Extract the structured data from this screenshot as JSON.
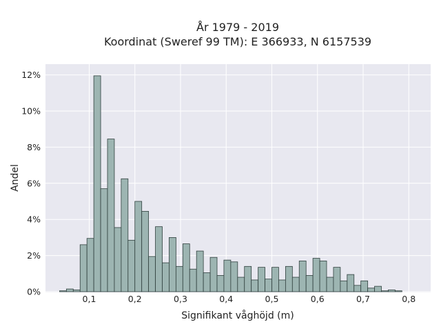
{
  "chart_data": {
    "type": "bar",
    "title_lines": [
      "År 1979 - 2019",
      "Koordinat (Sweref 99 TM): E 366933, N 6157539"
    ],
    "xlabel": "Signifikant våghöjd (m)",
    "ylabel": "Andel",
    "xlim": [
      0.0,
      0.84
    ],
    "ylim": [
      0,
      12.6
    ],
    "x_ticks": [
      {
        "value": 0.1,
        "label": "0,1"
      },
      {
        "value": 0.2,
        "label": "0,2"
      },
      {
        "value": 0.3,
        "label": "0,3"
      },
      {
        "value": 0.4,
        "label": "0,4"
      },
      {
        "value": 0.5,
        "label": "0,5"
      },
      {
        "value": 0.6,
        "label": "0,6"
      },
      {
        "value": 0.7,
        "label": "0,7"
      },
      {
        "value": 0.8,
        "label": "0,8"
      }
    ],
    "y_ticks": [
      {
        "value": 0,
        "label": "0%"
      },
      {
        "value": 2,
        "label": "2%"
      },
      {
        "value": 4,
        "label": "4%"
      },
      {
        "value": 6,
        "label": "6%"
      },
      {
        "value": 8,
        "label": "8%"
      },
      {
        "value": 10,
        "label": "10%"
      },
      {
        "value": 12,
        "label": "12%"
      }
    ],
    "grid": true,
    "bar_color": "#9db5b2",
    "bar_edge_color": "#2f3f3d",
    "background_color": "#e8e8f0",
    "grid_color": "#ffffff",
    "bin_width": 0.015,
    "bin_centers": [
      0.0425,
      0.0575,
      0.0725,
      0.0875,
      0.1025,
      0.1175,
      0.1325,
      0.1475,
      0.1625,
      0.1775,
      0.1925,
      0.2075,
      0.2225,
      0.2375,
      0.2525,
      0.2675,
      0.2825,
      0.2975,
      0.3125,
      0.3275,
      0.3425,
      0.3575,
      0.3725,
      0.3875,
      0.4025,
      0.4175,
      0.4325,
      0.4475,
      0.4625,
      0.4775,
      0.4925,
      0.5075,
      0.5225,
      0.5375,
      0.5525,
      0.5675,
      0.5825,
      0.5975,
      0.6125,
      0.6275,
      0.6425,
      0.6575,
      0.6725,
      0.6875,
      0.7025,
      0.7175,
      0.7325,
      0.7475,
      0.7625,
      0.7775,
      0.7925,
      0.8075
    ],
    "values": [
      0.05,
      0.15,
      0.1,
      2.6,
      2.95,
      11.95,
      5.7,
      8.45,
      3.55,
      6.25,
      2.85,
      5.0,
      4.45,
      1.95,
      3.6,
      1.6,
      3.0,
      1.4,
      2.65,
      1.25,
      2.25,
      1.05,
      1.9,
      0.9,
      1.75,
      1.65,
      0.8,
      1.4,
      0.65,
      1.35,
      0.7,
      1.35,
      0.65,
      1.4,
      0.8,
      1.7,
      0.9,
      1.85,
      1.7,
      0.8,
      1.35,
      0.6,
      0.95,
      0.35,
      0.6,
      0.2,
      0.3,
      0.05,
      0.1,
      0.05,
      0.0,
      0.0
    ]
  }
}
